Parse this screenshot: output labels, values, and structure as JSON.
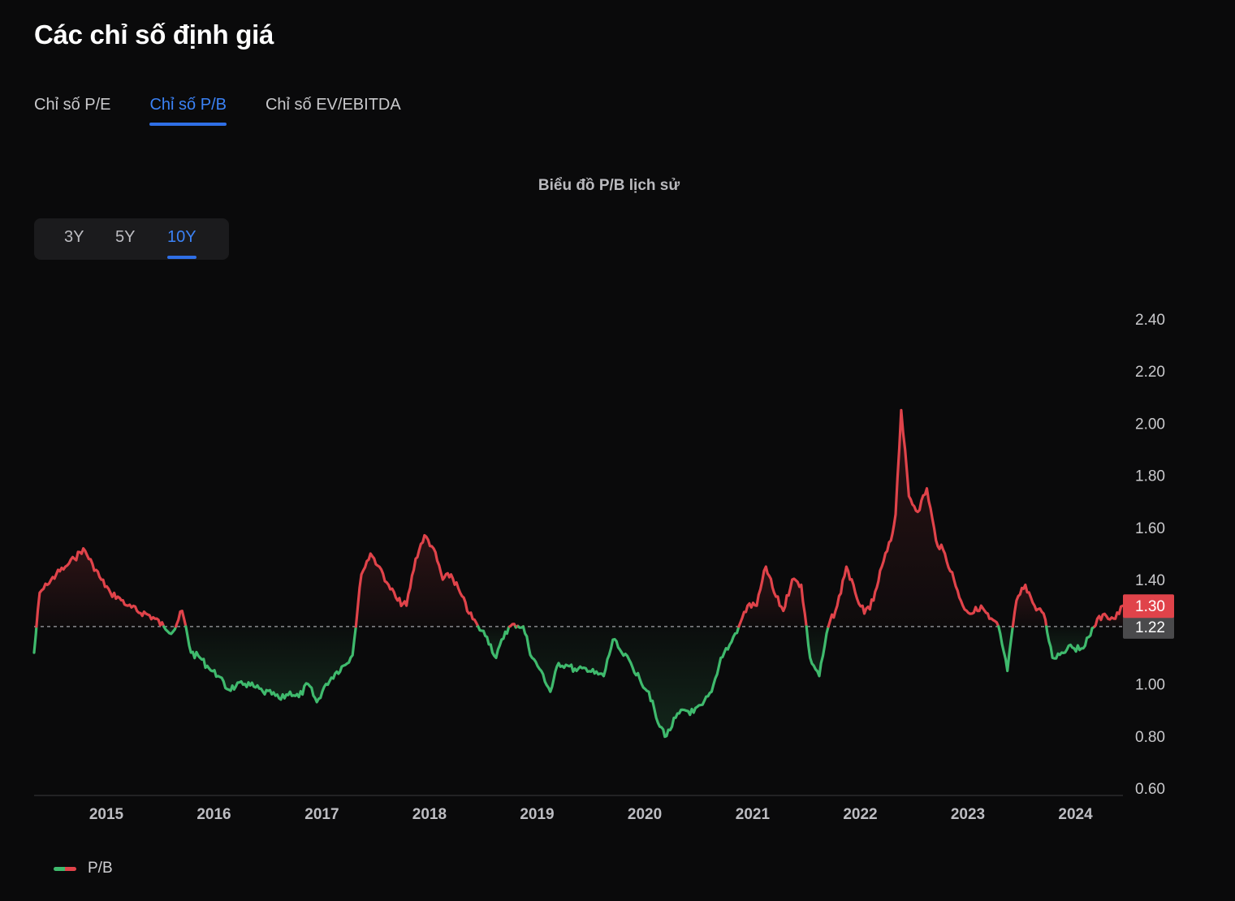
{
  "page": {
    "title": "Các chỉ số định giá"
  },
  "tabs": [
    {
      "label": "Chỉ số P/E",
      "active": false
    },
    {
      "label": "Chỉ số P/B",
      "active": true
    },
    {
      "label": "Chỉ số EV/EBITDA",
      "active": false
    }
  ],
  "range_selector": {
    "options": [
      "3Y",
      "5Y",
      "10Y"
    ],
    "selected": "10Y"
  },
  "colors": {
    "accent": "#2f6fe6",
    "above_reference": "#e0434a",
    "below_reference": "#3fba6d",
    "reference_label_bg": "#4a4a4c",
    "last_value_label_bg": "#e0434a"
  },
  "chart_data": {
    "type": "line",
    "title": "Biểu đồ P/B lịch sử",
    "xlabel": "",
    "ylabel": "",
    "ylim": [
      0.6,
      2.4
    ],
    "yticks": [
      "2.40",
      "2.20",
      "2.00",
      "1.80",
      "1.60",
      "1.40",
      "1.00",
      "0.80",
      "0.60"
    ],
    "xticks": [
      "2015",
      "2016",
      "2017",
      "2018",
      "2019",
      "2020",
      "2021",
      "2022",
      "2023",
      "2024"
    ],
    "xlim": [
      "2014-05-01",
      "2024-06-10"
    ],
    "reference_line": {
      "value": 1.22,
      "label": "1.22",
      "style": "dashed"
    },
    "last_value": {
      "value": 1.3,
      "label": "1.30"
    },
    "coloring": "red above reference line, green below",
    "legend": {
      "position": "bottom-left",
      "entries": [
        "P/B"
      ]
    },
    "series": [
      {
        "name": "P/B",
        "x": [
          "2014-05-01",
          "2014-05-20",
          "2014-06-15",
          "2014-07-15",
          "2014-08-15",
          "2014-09-15",
          "2014-10-15",
          "2014-11-15",
          "2014-12-15",
          "2015-01-15",
          "2015-02-15",
          "2015-03-15",
          "2015-04-15",
          "2015-05-15",
          "2015-06-15",
          "2015-07-15",
          "2015-08-15",
          "2015-09-15",
          "2015-10-15",
          "2015-11-15",
          "2015-12-15",
          "2016-01-15",
          "2016-02-15",
          "2016-03-15",
          "2016-04-15",
          "2016-05-15",
          "2016-06-15",
          "2016-07-15",
          "2016-08-15",
          "2016-09-15",
          "2016-10-15",
          "2016-11-15",
          "2016-12-15",
          "2017-01-15",
          "2017-02-15",
          "2017-03-15",
          "2017-04-15",
          "2017-05-15",
          "2017-06-15",
          "2017-07-15",
          "2017-08-15",
          "2017-09-15",
          "2017-10-15",
          "2017-11-15",
          "2017-12-15",
          "2018-01-15",
          "2018-02-15",
          "2018-03-15",
          "2018-04-15",
          "2018-05-15",
          "2018-06-15",
          "2018-07-15",
          "2018-08-15",
          "2018-09-15",
          "2018-10-15",
          "2018-11-15",
          "2018-12-15",
          "2019-01-15",
          "2019-02-15",
          "2019-03-15",
          "2019-04-15",
          "2019-05-15",
          "2019-06-15",
          "2019-07-15",
          "2019-08-15",
          "2019-09-15",
          "2019-10-15",
          "2019-11-15",
          "2019-12-15",
          "2020-01-15",
          "2020-02-15",
          "2020-03-15",
          "2020-04-15",
          "2020-05-15",
          "2020-06-15",
          "2020-07-15",
          "2020-08-15",
          "2020-09-15",
          "2020-10-15",
          "2020-11-15",
          "2020-12-15",
          "2021-01-15",
          "2021-02-15",
          "2021-03-15",
          "2021-04-15",
          "2021-05-15",
          "2021-06-15",
          "2021-07-15",
          "2021-08-15",
          "2021-09-15",
          "2021-10-15",
          "2021-11-15",
          "2021-12-15",
          "2022-01-15",
          "2022-02-15",
          "2022-03-15",
          "2022-04-15",
          "2022-05-01",
          "2022-05-20",
          "2022-06-15",
          "2022-07-15",
          "2022-08-15",
          "2022-09-15",
          "2022-10-15",
          "2022-11-15",
          "2022-12-15",
          "2023-01-15",
          "2023-02-15",
          "2023-03-15",
          "2023-04-15",
          "2023-05-15",
          "2023-06-15",
          "2023-07-15",
          "2023-08-15",
          "2023-09-15",
          "2023-10-15",
          "2023-11-15",
          "2023-12-15",
          "2024-01-15",
          "2024-02-15",
          "2024-03-15",
          "2024-04-15",
          "2024-05-15",
          "2024-06-10"
        ],
        "y": [
          1.12,
          1.35,
          1.38,
          1.42,
          1.45,
          1.48,
          1.52,
          1.46,
          1.4,
          1.35,
          1.33,
          1.3,
          1.28,
          1.27,
          1.25,
          1.22,
          1.2,
          1.28,
          1.12,
          1.1,
          1.06,
          1.03,
          0.98,
          0.99,
          1.0,
          0.99,
          0.97,
          0.96,
          0.94,
          0.97,
          0.95,
          1.0,
          0.93,
          1.0,
          1.04,
          1.07,
          1.11,
          1.42,
          1.5,
          1.45,
          1.38,
          1.32,
          1.3,
          1.48,
          1.57,
          1.52,
          1.4,
          1.42,
          1.35,
          1.27,
          1.22,
          1.18,
          1.1,
          1.2,
          1.23,
          1.22,
          1.1,
          1.05,
          0.97,
          1.08,
          1.07,
          1.05,
          1.06,
          1.04,
          1.03,
          1.17,
          1.12,
          1.08,
          1.02,
          0.97,
          0.85,
          0.8,
          0.87,
          0.9,
          0.89,
          0.92,
          0.97,
          1.1,
          1.15,
          1.22,
          1.3,
          1.3,
          1.45,
          1.35,
          1.28,
          1.4,
          1.38,
          1.1,
          1.03,
          1.22,
          1.3,
          1.45,
          1.35,
          1.27,
          1.32,
          1.45,
          1.55,
          1.65,
          2.05,
          1.72,
          1.66,
          1.75,
          1.55,
          1.5,
          1.4,
          1.3,
          1.27,
          1.3,
          1.25,
          1.22,
          1.05,
          1.32,
          1.38,
          1.3,
          1.27,
          1.1,
          1.12,
          1.15,
          1.13,
          1.18,
          1.25,
          1.26,
          1.25,
          1.3
        ]
      }
    ]
  }
}
